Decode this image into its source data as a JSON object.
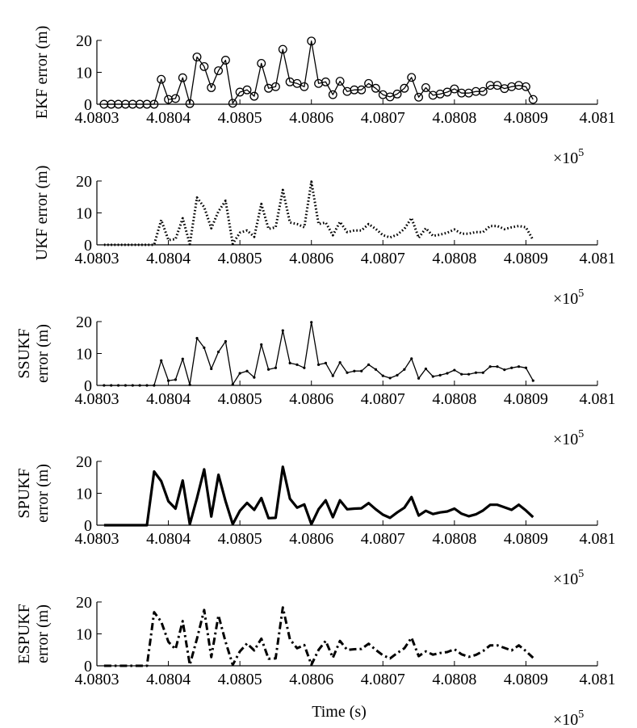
{
  "x_axis": {
    "label": "Time (s)",
    "tick_labels": [
      "4.0803",
      "4.0804",
      "4.0805",
      "4.0806",
      "4.0807",
      "4.0808",
      "4.0809",
      "4.081"
    ],
    "multiplier_label": "×10",
    "multiplier_exponent": "5"
  },
  "chart_data": [
    {
      "type": "line",
      "ylabel": [
        "EKF error (m)"
      ],
      "xlim": [
        40803,
        40810
      ],
      "ylim": [
        0,
        20
      ],
      "yticks": [
        0,
        10,
        20
      ],
      "grid": false,
      "style": {
        "stroke": "solid",
        "width": 1.3,
        "marker": "circle"
      },
      "series": [
        {
          "x": [
            40803.1,
            40803.2,
            40803.3,
            40803.4,
            40803.5,
            40803.6,
            40803.7,
            40803.8,
            40803.9,
            40804.0,
            40804.1,
            40804.2,
            40804.3,
            40804.4,
            40804.5,
            40804.6,
            40804.7,
            40804.8,
            40804.9,
            40805.0,
            40805.1,
            40805.2,
            40805.3,
            40805.4,
            40805.5,
            40805.6,
            40805.7,
            40805.8,
            40805.9,
            40806.0,
            40806.1,
            40806.2,
            40806.3,
            40806.4,
            40806.5,
            40806.6,
            40806.7,
            40806.8,
            40806.9,
            40807.0,
            40807.1,
            40807.2,
            40807.3,
            40807.4,
            40807.5,
            40807.6,
            40807.7,
            40807.8,
            40807.9,
            40808.0,
            40808.1,
            40808.2,
            40808.3,
            40808.4,
            40808.5,
            40808.6,
            40808.7,
            40808.8,
            40808.9,
            40809.0,
            40809.1
          ],
          "y": [
            0,
            0,
            0,
            0,
            0,
            0,
            0,
            0,
            7.8,
            1.5,
            1.8,
            8.3,
            0.2,
            14.8,
            11.8,
            5.2,
            10.5,
            13.8,
            0.3,
            3.8,
            4.5,
            2.5,
            12.8,
            5,
            5.5,
            17.2,
            7,
            6.5,
            5.5,
            19.8,
            6.5,
            7,
            3,
            7.2,
            4,
            4.5,
            4.5,
            6.5,
            5,
            3,
            2.3,
            3.2,
            5,
            8.4,
            2.2,
            5.2,
            2.8,
            3.2,
            3.8,
            4.8,
            3.5,
            3.5,
            4,
            4,
            5.9,
            5.9,
            4.9,
            5.5,
            5.9,
            5.5,
            1.5
          ]
        }
      ]
    },
    {
      "type": "line",
      "ylabel": [
        "UKF error (m)"
      ],
      "xlim": [
        40803,
        40810
      ],
      "ylim": [
        0,
        20
      ],
      "yticks": [
        0,
        10,
        20
      ],
      "grid": false,
      "style": {
        "stroke": "dotted",
        "width": 3,
        "marker": "none"
      },
      "series": [
        {
          "x": [
            40803.1,
            40803.2,
            40803.3,
            40803.4,
            40803.5,
            40803.6,
            40803.7,
            40803.8,
            40803.9,
            40804.0,
            40804.1,
            40804.2,
            40804.3,
            40804.4,
            40804.5,
            40804.6,
            40804.7,
            40804.8,
            40804.9,
            40805.0,
            40805.1,
            40805.2,
            40805.3,
            40805.4,
            40805.5,
            40805.6,
            40805.7,
            40805.8,
            40805.9,
            40806.0,
            40806.1,
            40806.2,
            40806.3,
            40806.4,
            40806.5,
            40806.6,
            40806.7,
            40806.8,
            40806.9,
            40807.0,
            40807.1,
            40807.2,
            40807.3,
            40807.4,
            40807.5,
            40807.6,
            40807.7,
            40807.8,
            40807.9,
            40808.0,
            40808.1,
            40808.2,
            40808.3,
            40808.4,
            40808.5,
            40808.6,
            40808.7,
            40808.8,
            40808.9,
            40809.0,
            40809.1
          ],
          "y": [
            0,
            0,
            0,
            0,
            0,
            0,
            0,
            0,
            7.8,
            1.5,
            1.8,
            8.3,
            0.2,
            14.8,
            11.8,
            5.2,
            10.5,
            13.8,
            0.3,
            3.8,
            4.5,
            2.5,
            12.8,
            5,
            5.5,
            17.2,
            7,
            6.5,
            5.5,
            19.8,
            6.5,
            7,
            3,
            7.2,
            4,
            4.5,
            4.5,
            6.5,
            5,
            3,
            2.3,
            3.2,
            5,
            8.4,
            2.2,
            5.2,
            2.8,
            3.2,
            3.8,
            4.8,
            3.5,
            3.5,
            4,
            4,
            5.9,
            5.9,
            4.9,
            5.5,
            5.9,
            5.5,
            1.5
          ]
        }
      ]
    },
    {
      "type": "line",
      "ylabel": [
        "SSUKF",
        "error (m)"
      ],
      "xlim": [
        40803,
        40810
      ],
      "ylim": [
        0,
        20
      ],
      "yticks": [
        0,
        10,
        20
      ],
      "grid": false,
      "style": {
        "stroke": "solid",
        "width": 1.3,
        "marker": "dot"
      },
      "series": [
        {
          "x": [
            40803.1,
            40803.2,
            40803.3,
            40803.4,
            40803.5,
            40803.6,
            40803.7,
            40803.8,
            40803.9,
            40804.0,
            40804.1,
            40804.2,
            40804.3,
            40804.4,
            40804.5,
            40804.6,
            40804.7,
            40804.8,
            40804.9,
            40805.0,
            40805.1,
            40805.2,
            40805.3,
            40805.4,
            40805.5,
            40805.6,
            40805.7,
            40805.8,
            40805.9,
            40806.0,
            40806.1,
            40806.2,
            40806.3,
            40806.4,
            40806.5,
            40806.6,
            40806.7,
            40806.8,
            40806.9,
            40807.0,
            40807.1,
            40807.2,
            40807.3,
            40807.4,
            40807.5,
            40807.6,
            40807.7,
            40807.8,
            40807.9,
            40808.0,
            40808.1,
            40808.2,
            40808.3,
            40808.4,
            40808.5,
            40808.6,
            40808.7,
            40808.8,
            40808.9,
            40809.0,
            40809.1
          ],
          "y": [
            0,
            0,
            0,
            0,
            0,
            0,
            0,
            0,
            7.8,
            1.5,
            1.8,
            8.3,
            0.2,
            14.8,
            11.8,
            5.2,
            10.5,
            13.8,
            0.3,
            3.8,
            4.5,
            2.5,
            12.8,
            5,
            5.5,
            17.2,
            7,
            6.5,
            5.5,
            19.8,
            6.5,
            7,
            3,
            7.2,
            4,
            4.5,
            4.5,
            6.5,
            5,
            3,
            2.3,
            3.2,
            5,
            8.4,
            2.2,
            5.2,
            2.8,
            3.2,
            3.8,
            4.8,
            3.5,
            3.5,
            4,
            4,
            5.9,
            5.9,
            4.9,
            5.5,
            5.9,
            5.5,
            1.5
          ]
        }
      ]
    },
    {
      "type": "line",
      "ylabel": [
        "SPUKF",
        "error (m)"
      ],
      "xlim": [
        40803,
        40810
      ],
      "ylim": [
        0,
        20
      ],
      "yticks": [
        0,
        10,
        20
      ],
      "grid": false,
      "style": {
        "stroke": "solid",
        "width": 3.2,
        "marker": "none"
      },
      "series": [
        {
          "x": [
            40803.1,
            40803.2,
            40803.3,
            40803.4,
            40803.5,
            40803.6,
            40803.7,
            40803.8,
            40803.9,
            40804.0,
            40804.1,
            40804.2,
            40804.3,
            40804.4,
            40804.5,
            40804.6,
            40804.7,
            40804.8,
            40804.9,
            40805.0,
            40805.1,
            40805.2,
            40805.3,
            40805.4,
            40805.5,
            40805.6,
            40805.7,
            40805.8,
            40805.9,
            40806.0,
            40806.1,
            40806.2,
            40806.3,
            40806.4,
            40806.5,
            40806.6,
            40806.7,
            40806.8,
            40806.9,
            40807.0,
            40807.1,
            40807.2,
            40807.3,
            40807.4,
            40807.5,
            40807.6,
            40807.7,
            40807.8,
            40807.9,
            40808.0,
            40808.1,
            40808.2,
            40808.3,
            40808.4,
            40808.5,
            40808.6,
            40808.7,
            40808.8,
            40808.9,
            40809.0,
            40809.1
          ],
          "y": [
            0,
            0,
            0,
            0,
            0,
            0,
            0,
            16.8,
            13.8,
            7.5,
            5.2,
            14,
            0.3,
            8.5,
            17.5,
            2.7,
            15.8,
            7.5,
            0.3,
            4.5,
            7,
            4.8,
            8.5,
            2.2,
            2.3,
            18.3,
            8.3,
            5.5,
            6.5,
            0.3,
            5,
            7.8,
            2.5,
            7.8,
            5,
            5.2,
            5.3,
            6.9,
            5,
            3.3,
            2.3,
            4,
            5.5,
            8.8,
            3,
            4.5,
            3.5,
            4,
            4.3,
            5.2,
            3.6,
            2.8,
            3.4,
            4.6,
            6.4,
            6.4,
            5.6,
            4.8,
            6.4,
            4.6,
            2.5
          ]
        }
      ]
    },
    {
      "type": "line",
      "ylabel": [
        "ESPUKF",
        "error (m)"
      ],
      "xlim": [
        40803,
        40810
      ],
      "ylim": [
        0,
        20
      ],
      "yticks": [
        0,
        10,
        20
      ],
      "grid": false,
      "style": {
        "stroke": "dashdot",
        "width": 3,
        "marker": "none"
      },
      "series": [
        {
          "x": [
            40803.1,
            40803.2,
            40803.3,
            40803.4,
            40803.5,
            40803.6,
            40803.7,
            40803.8,
            40803.9,
            40804.0,
            40804.1,
            40804.2,
            40804.3,
            40804.4,
            40804.5,
            40804.6,
            40804.7,
            40804.8,
            40804.9,
            40805.0,
            40805.1,
            40805.2,
            40805.3,
            40805.4,
            40805.5,
            40805.6,
            40805.7,
            40805.8,
            40805.9,
            40806.0,
            40806.1,
            40806.2,
            40806.3,
            40806.4,
            40806.5,
            40806.6,
            40806.7,
            40806.8,
            40806.9,
            40807.0,
            40807.1,
            40807.2,
            40807.3,
            40807.4,
            40807.5,
            40807.6,
            40807.7,
            40807.8,
            40807.9,
            40808.0,
            40808.1,
            40808.2,
            40808.3,
            40808.4,
            40808.5,
            40808.6,
            40808.7,
            40808.8,
            40808.9,
            40809.0,
            40809.1
          ],
          "y": [
            0,
            0,
            0,
            0,
            0,
            0,
            0,
            16.8,
            13.8,
            7.5,
            5.2,
            14,
            0.3,
            8.5,
            17.5,
            2.7,
            15.8,
            7.5,
            0.3,
            4.5,
            7,
            4.8,
            8.5,
            2.2,
            2.3,
            18.3,
            8.3,
            5.5,
            6.5,
            0.3,
            5,
            7.8,
            2.5,
            7.8,
            5,
            5.2,
            5.3,
            6.9,
            5,
            3.3,
            2.3,
            4,
            5.5,
            8.8,
            3,
            4.5,
            3.5,
            4,
            4.3,
            5.2,
            3.6,
            2.8,
            3.4,
            4.6,
            6.4,
            6.4,
            5.6,
            4.8,
            6.4,
            4.6,
            2.5
          ]
        }
      ]
    }
  ]
}
